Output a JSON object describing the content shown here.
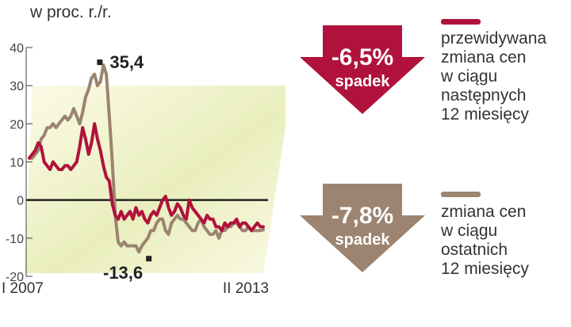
{
  "chart_data": {
    "type": "line",
    "ylabel": "w proc. r./r.",
    "ylim": [
      -20,
      40
    ],
    "yticks": [
      40,
      30,
      20,
      10,
      0,
      -10,
      -20
    ],
    "x_start_label": "I 2007",
    "x_end_label": "II 2013",
    "grid": false,
    "annotations": [
      {
        "text": "35,4",
        "series": "zmiana cen w ciągu ostatnich 12 miesięcy",
        "value": 35.4
      },
      {
        "text": "-13,6",
        "series": "zmiana cen w ciągu ostatnich 12 miesięcy",
        "value": -13.6
      }
    ],
    "series": [
      {
        "name": "przewidywana zmiana cen w ciągu następnych 12 miesięcy",
        "color": "#b0123c",
        "values": [
          11,
          12,
          13,
          15,
          14,
          10,
          9,
          8,
          10,
          9,
          8,
          8,
          9,
          9,
          8,
          9,
          10,
          14,
          19,
          16,
          12,
          15,
          20,
          16,
          13,
          9,
          6,
          5,
          -1,
          -4,
          -5,
          -3,
          -5,
          -4,
          -3,
          -5,
          -2,
          -4,
          -3,
          -5,
          -6,
          -4,
          -3,
          -4,
          -2,
          0,
          1,
          -2,
          -4,
          -3,
          -1,
          -2,
          -4,
          -5,
          0,
          -2,
          -3,
          -4,
          -5,
          -6,
          -4,
          -5,
          -5,
          -7,
          -7,
          -8,
          -6,
          -7,
          -6,
          -6,
          -5,
          -7,
          -6,
          -6,
          -7,
          -8,
          -7,
          -6,
          -7,
          -7
        ]
      },
      {
        "name": "zmiana cen w ciągu ostatnich 12 miesięcy",
        "color": "#9c8470",
        "values": [
          11,
          11,
          12,
          13,
          16,
          17,
          19,
          19,
          20,
          19,
          20,
          21,
          22,
          21,
          22,
          24,
          22,
          20,
          23,
          27,
          29,
          32,
          33,
          30,
          31,
          35.4,
          33,
          22,
          10,
          -4,
          -11,
          -12,
          -11,
          -12,
          -12,
          -12,
          -12,
          -13.6,
          -12,
          -11,
          -10,
          -8,
          -8,
          -6,
          -5,
          -5,
          -8,
          -9,
          -6,
          -5,
          -4,
          -5,
          -5,
          -6,
          -7,
          -8,
          -8,
          -6,
          -5,
          -7,
          -8,
          -9,
          -9,
          -8,
          -10,
          -8,
          -8,
          -7,
          -7,
          -6,
          -6,
          -7,
          -8,
          -8,
          -7,
          -8,
          -8,
          -8,
          -8,
          -7.8
        ]
      }
    ]
  },
  "legend": [
    {
      "swatch_color": "#b0123c",
      "lines": [
        "przewidywana",
        "zmiana cen",
        "w ciągu",
        "następnych",
        "12 miesięcy"
      ],
      "arrow_value": "-6,5%",
      "arrow_word": "spadek",
      "arrow_color": "#b0123c"
    },
    {
      "swatch_color": "#9c8470",
      "lines": [
        "zmiana cen",
        "w ciągu",
        "ostatnich",
        "12 miesięcy"
      ],
      "arrow_value": "-7,8%",
      "arrow_word": "spadek",
      "arrow_color": "#9c8470"
    }
  ]
}
